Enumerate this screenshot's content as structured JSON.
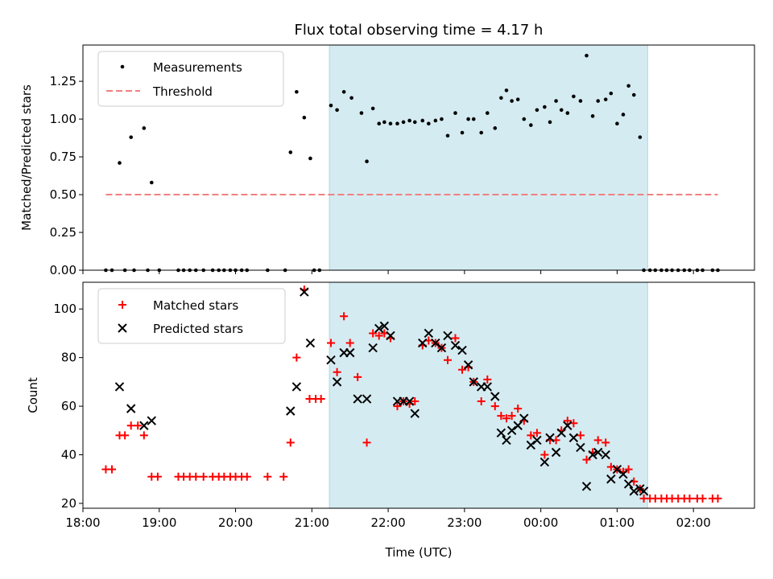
{
  "chart_data": [
    {
      "type": "scatter",
      "title": "Flux total observing time = 4.17 h",
      "xlabel": "",
      "ylabel": "Matched/Predicted stars",
      "xlim": [
        18.0,
        26.8
      ],
      "ylim": [
        0.0,
        1.49
      ],
      "yticks": [
        0.0,
        0.25,
        0.5,
        0.75,
        1.0,
        1.25
      ],
      "ytick_labels": [
        "0.00",
        "0.25",
        "0.50",
        "0.75",
        "1.00",
        "1.25"
      ],
      "shaded_region": [
        21.23,
        25.4
      ],
      "shade_color": "#d4ebf1",
      "threshold": {
        "value": 0.5,
        "xrange": [
          18.3,
          26.32
        ],
        "color": "#f08080",
        "label": "Threshold"
      },
      "legend": {
        "position": "top-left",
        "entries": [
          "Measurements",
          "Threshold"
        ]
      },
      "series": [
        {
          "name": "Measurements",
          "marker": "dot",
          "color": "#000000",
          "x": [
            18.3,
            18.38,
            18.55,
            18.67,
            18.85,
            19.0,
            19.25,
            19.32,
            19.4,
            19.48,
            19.58,
            19.7,
            19.78,
            19.85,
            19.93,
            20.0,
            20.08,
            20.15,
            20.42,
            20.65,
            18.48,
            18.63,
            18.8,
            18.9,
            20.72,
            20.8,
            20.9,
            20.98,
            21.03,
            21.1,
            21.25,
            21.33,
            21.42,
            21.52,
            21.65,
            21.72,
            21.8,
            21.88,
            21.95,
            22.03,
            22.12,
            22.2,
            22.28,
            22.35,
            22.45,
            22.53,
            22.62,
            22.7,
            22.78,
            22.88,
            22.97,
            23.05,
            23.12,
            23.22,
            23.3,
            23.4,
            23.48,
            23.55,
            23.62,
            23.7,
            23.78,
            23.87,
            23.95,
            24.05,
            24.12,
            24.2,
            24.27,
            24.35,
            24.43,
            24.52,
            24.6,
            24.68,
            24.75,
            24.85,
            24.92,
            25.0,
            25.08,
            25.15,
            25.22,
            25.3,
            25.35,
            25.43,
            25.5,
            25.58,
            25.65,
            25.72,
            25.8,
            25.88,
            25.95,
            26.05,
            26.12,
            26.25,
            26.32
          ],
          "y": [
            0,
            0,
            0,
            0,
            0,
            0,
            0,
            0,
            0,
            0,
            0,
            0,
            0,
            0,
            0,
            0,
            0,
            0,
            0,
            0,
            0.71,
            0.88,
            0.94,
            0.58,
            0.78,
            1.18,
            1.01,
            0.74,
            0,
            0,
            1.09,
            1.06,
            1.18,
            1.14,
            1.04,
            0.72,
            1.07,
            0.97,
            0.98,
            0.97,
            0.97,
            0.98,
            0.99,
            0.98,
            0.99,
            0.97,
            0.99,
            1.0,
            0.89,
            1.04,
            0.91,
            1.0,
            1.0,
            0.91,
            1.04,
            0.94,
            1.14,
            1.19,
            1.12,
            1.13,
            1.0,
            0.96,
            1.06,
            1.08,
            0.98,
            1.12,
            1.06,
            1.04,
            1.15,
            1.12,
            1.42,
            1.02,
            1.12,
            1.13,
            1.17,
            0.97,
            1.03,
            1.22,
            1.16,
            0.88,
            0,
            0,
            0,
            0,
            0,
            0,
            0,
            0,
            0,
            0,
            0,
            0,
            0
          ]
        }
      ]
    },
    {
      "type": "scatter",
      "title": "",
      "xlabel": "Time (UTC)",
      "ylabel": "Count",
      "xlim": [
        18.0,
        26.8
      ],
      "ylim": [
        18.0,
        111.0
      ],
      "yticks": [
        20,
        40,
        60,
        80,
        100
      ],
      "ytick_labels": [
        "20",
        "40",
        "60",
        "80",
        "100"
      ],
      "xticks": [
        18,
        19,
        20,
        21,
        22,
        23,
        24,
        25,
        26
      ],
      "xtick_labels": [
        "18:00",
        "19:00",
        "20:00",
        "21:00",
        "22:00",
        "23:00",
        "00:00",
        "01:00",
        "02:00"
      ],
      "shaded_region": [
        21.23,
        25.4
      ],
      "shade_color": "#d4ebf1",
      "legend": {
        "position": "top-left",
        "entries": [
          "Matched stars",
          "Predicted stars"
        ]
      },
      "series": [
        {
          "name": "Matched stars",
          "marker": "plus",
          "color": "#ff0000",
          "x": [
            18.3,
            18.38,
            18.48,
            18.55,
            18.63,
            18.72,
            18.8,
            18.9,
            18.98,
            19.25,
            19.32,
            19.4,
            19.48,
            19.58,
            19.7,
            19.78,
            19.85,
            19.93,
            20.0,
            20.08,
            20.15,
            20.42,
            20.63,
            20.72,
            20.8,
            20.9,
            20.97,
            21.05,
            21.12,
            21.25,
            21.33,
            21.42,
            21.5,
            21.6,
            21.72,
            21.8,
            21.88,
            21.95,
            22.03,
            22.12,
            22.2,
            22.28,
            22.35,
            22.45,
            22.53,
            22.62,
            22.7,
            22.78,
            22.88,
            22.97,
            23.05,
            23.12,
            23.22,
            23.3,
            23.4,
            23.48,
            23.55,
            23.62,
            23.7,
            23.78,
            23.87,
            23.95,
            24.05,
            24.12,
            24.2,
            24.27,
            24.35,
            24.43,
            24.52,
            24.6,
            24.68,
            24.75,
            24.85,
            24.92,
            25.0,
            25.08,
            25.15,
            25.22,
            25.3,
            25.35,
            25.43,
            25.5,
            25.58,
            25.65,
            25.72,
            25.8,
            25.88,
            25.95,
            26.05,
            26.12,
            26.25,
            26.32
          ],
          "y": [
            34,
            34,
            48,
            48,
            52,
            52,
            48,
            31,
            31,
            31,
            31,
            31,
            31,
            31,
            31,
            31,
            31,
            31,
            31,
            31,
            31,
            31,
            31,
            45,
            80,
            108,
            63,
            63,
            63,
            86,
            74,
            97,
            86,
            72,
            45,
            90,
            89,
            90,
            88,
            60,
            62,
            61,
            62,
            85,
            87,
            86,
            84,
            79,
            88,
            75,
            76,
            70,
            62,
            71,
            60,
            56,
            55,
            56,
            59,
            54,
            48,
            49,
            40,
            46,
            46,
            50,
            54,
            53,
            48,
            38,
            41,
            46,
            45,
            35,
            34,
            33,
            34,
            29,
            26,
            22,
            22,
            22,
            22,
            22,
            22,
            22,
            22,
            22,
            22,
            22,
            22,
            22
          ],
          "note": "y values listed are read from the plot"
        },
        {
          "name": "Predicted stars",
          "marker": "x",
          "color": "#000000",
          "x": [
            18.48,
            18.63,
            18.8,
            18.9,
            20.72,
            20.8,
            20.9,
            20.98,
            21.25,
            21.33,
            21.42,
            21.5,
            21.6,
            21.72,
            21.8,
            21.88,
            21.95,
            22.03,
            22.12,
            22.2,
            22.28,
            22.35,
            22.45,
            22.53,
            22.62,
            22.7,
            22.78,
            22.88,
            22.97,
            23.05,
            23.12,
            23.22,
            23.3,
            23.4,
            23.48,
            23.55,
            23.62,
            23.7,
            23.78,
            23.87,
            23.95,
            24.05,
            24.12,
            24.2,
            24.27,
            24.35,
            24.43,
            24.52,
            24.6,
            24.68,
            24.75,
            24.85,
            24.92,
            25.0,
            25.08,
            25.15,
            25.22,
            25.3,
            25.35
          ],
          "y": [
            68,
            59,
            52,
            54,
            58,
            68,
            107,
            86,
            79,
            70,
            82,
            82,
            63,
            63,
            84,
            92,
            93,
            89,
            62,
            62,
            62,
            57,
            86,
            90,
            86,
            84,
            89,
            85,
            83,
            77,
            70,
            68,
            68,
            64,
            49,
            46,
            50,
            52,
            55,
            44,
            46,
            37,
            47,
            41,
            49,
            52,
            47,
            43,
            27,
            40,
            41,
            40,
            30,
            34,
            32,
            28,
            25,
            26,
            25
          ]
        }
      ]
    }
  ]
}
